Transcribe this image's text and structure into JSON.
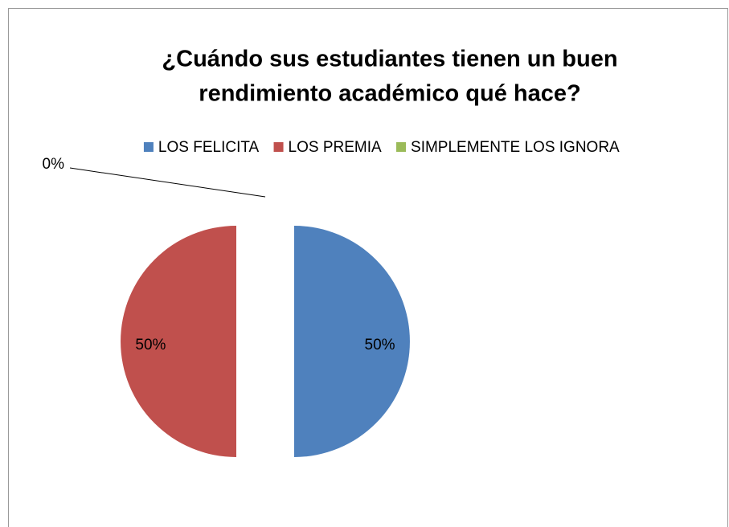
{
  "chart_data": {
    "type": "pie",
    "title": [
      "¿Cuándo sus estudiantes tienen un buen",
      "rendimiento académico qué hace?"
    ],
    "categories": [
      "LOS FELICITA",
      "LOS PREMIA",
      "SIMPLEMENTE LOS IGNORA"
    ],
    "values": [
      50,
      50,
      0
    ],
    "value_labels": [
      "50%",
      "50%",
      "0%"
    ],
    "colors": [
      "#4f81bd",
      "#c0504d",
      "#9bbb59"
    ],
    "legend": "top"
  }
}
